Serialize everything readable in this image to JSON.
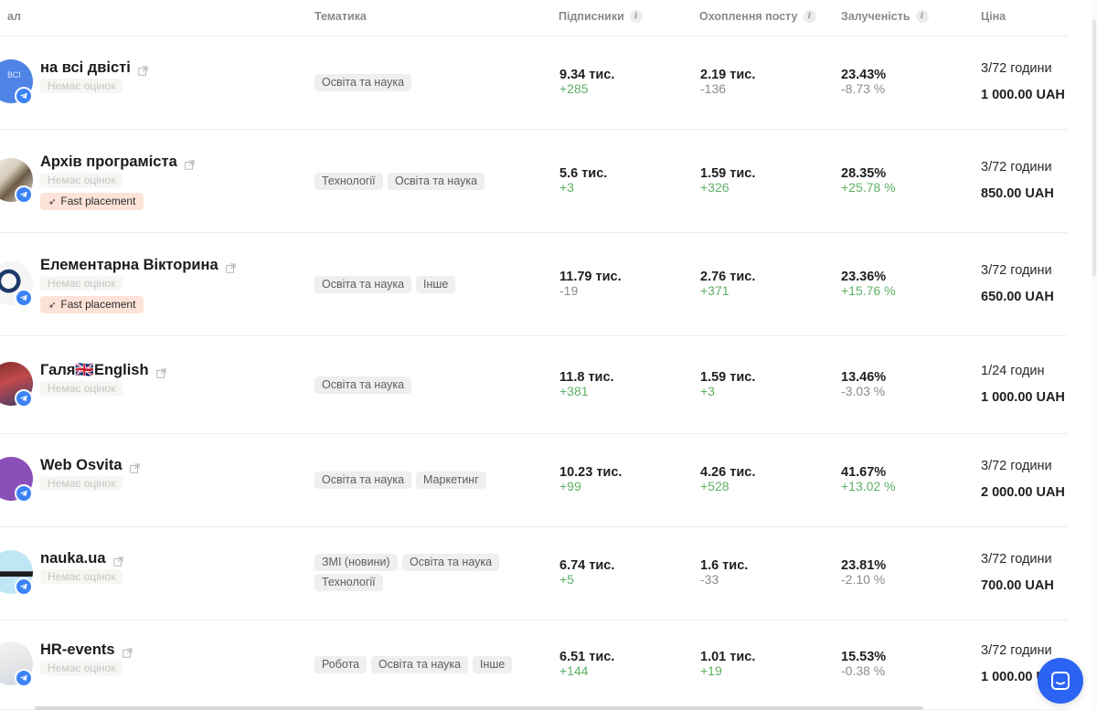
{
  "columns": {
    "channel": "ал",
    "topic": "Тематика",
    "subscribers": "Підписники",
    "reach": "Охоплення посту",
    "engagement": "Залученість",
    "price": "Ціна"
  },
  "labels": {
    "no_rating": "Немає оцінок",
    "fast_placement": "Fast placement"
  },
  "rows": [
    {
      "name": "на всі двісті",
      "avatar_text": "ВСІ",
      "fast": false,
      "tags": [
        "Освіта та наука"
      ],
      "subscribers": "9.34 тис.",
      "subscribers_delta": "+285",
      "reach": "2.19 тис.",
      "reach_delta": "-136",
      "engagement": "23.43%",
      "engagement_delta": "-8.73 %",
      "period": "3/72 години",
      "price": "1 000.00 UAH"
    },
    {
      "name": "Архів програміста",
      "avatar_text": "",
      "fast": true,
      "tags": [
        "Технології",
        "Освіта та наука"
      ],
      "subscribers": "5.6 тис.",
      "subscribers_delta": "+3",
      "reach": "1.59 тис.",
      "reach_delta": "+326",
      "engagement": "28.35%",
      "engagement_delta": "+25.78 %",
      "period": "3/72 години",
      "price": "850.00 UAH"
    },
    {
      "name": "Елементарна Вікторина",
      "avatar_text": "",
      "fast": true,
      "tags": [
        "Освіта та наука",
        "Інше"
      ],
      "subscribers": "11.79 тис.",
      "subscribers_delta": "-19",
      "reach": "2.76 тис.",
      "reach_delta": "+371",
      "engagement": "23.36%",
      "engagement_delta": "+15.76 %",
      "period": "3/72 години",
      "price": "650.00 UAH"
    },
    {
      "name": "Галя🇬🇧English",
      "avatar_text": "",
      "fast": false,
      "tags": [
        "Освіта та наука"
      ],
      "subscribers": "11.8 тис.",
      "subscribers_delta": "+381",
      "reach": "1.59 тис.",
      "reach_delta": "+3",
      "engagement": "13.46%",
      "engagement_delta": "-3.03 %",
      "period": "1/24 годин",
      "price": "1 000.00 UAH"
    },
    {
      "name": "Web Osvita",
      "avatar_text": "",
      "fast": false,
      "tags": [
        "Освіта та наука",
        "Маркетинг"
      ],
      "subscribers": "10.23 тис.",
      "subscribers_delta": "+99",
      "reach": "4.26 тис.",
      "reach_delta": "+528",
      "engagement": "41.67%",
      "engagement_delta": "+13.02 %",
      "period": "3/72 години",
      "price": "2 000.00 UAH"
    },
    {
      "name": "nauka.ua",
      "avatar_text": "",
      "fast": false,
      "tags": [
        "ЗМІ (новини)",
        "Освіта та наука",
        "Технології"
      ],
      "subscribers": "6.74 тис.",
      "subscribers_delta": "+5",
      "reach": "1.6 тис.",
      "reach_delta": "-33",
      "engagement": "23.81%",
      "engagement_delta": "-2.10 %",
      "period": "3/72 години",
      "price": "700.00 UAH"
    },
    {
      "name": "HR-events",
      "avatar_text": "",
      "fast": false,
      "tags": [
        "Робота",
        "Освіта та наука",
        "Інше"
      ],
      "subscribers": "6.51 тис.",
      "subscribers_delta": "+144",
      "reach": "1.01 тис.",
      "reach_delta": "+19",
      "engagement": "15.53%",
      "engagement_delta": "-0.38 %",
      "period": "3/72 години",
      "price": "1 000.00 UAH"
    }
  ],
  "colors": {
    "positive": "#5eb065",
    "negative": "#8c8c8c",
    "telegram": "#3b82f6",
    "fast_bg": "#fde3d7",
    "chat_button": "#2b63f3"
  },
  "icons": {
    "info": "info-icon",
    "external": "external-link-icon",
    "telegram": "telegram-icon",
    "fast": "rocket-icon",
    "chat": "chat-icon"
  }
}
